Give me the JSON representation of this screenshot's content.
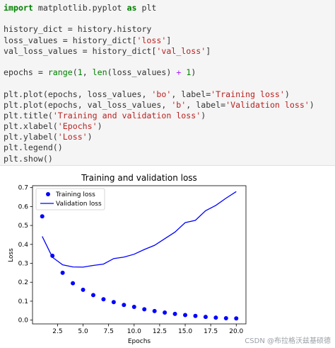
{
  "code": {
    "lines": [
      [
        {
          "t": "import",
          "c": "kw"
        },
        {
          "t": " matplotlib.pyplot ",
          "c": ""
        },
        {
          "t": "as",
          "c": "kw"
        },
        {
          "t": " plt",
          "c": ""
        }
      ],
      [],
      [
        {
          "t": "history_dict = history.history",
          "c": ""
        }
      ],
      [
        {
          "t": "loss_values = history_dict[",
          "c": ""
        },
        {
          "t": "'loss'",
          "c": "str"
        },
        {
          "t": "]",
          "c": ""
        }
      ],
      [
        {
          "t": "val_loss_values = history_dict[",
          "c": ""
        },
        {
          "t": "'val_loss'",
          "c": "str"
        },
        {
          "t": "]",
          "c": ""
        }
      ],
      [],
      [
        {
          "t": "epochs = ",
          "c": ""
        },
        {
          "t": "range",
          "c": "bi"
        },
        {
          "t": "(",
          "c": ""
        },
        {
          "t": "1",
          "c": "num"
        },
        {
          "t": ", ",
          "c": ""
        },
        {
          "t": "len",
          "c": "bi"
        },
        {
          "t": "(loss_values) ",
          "c": ""
        },
        {
          "t": "+",
          "c": "op"
        },
        {
          "t": " ",
          "c": ""
        },
        {
          "t": "1",
          "c": "num"
        },
        {
          "t": ")",
          "c": ""
        }
      ],
      [],
      [
        {
          "t": "plt.plot(epochs, loss_values, ",
          "c": ""
        },
        {
          "t": "'bo'",
          "c": "str"
        },
        {
          "t": ", label=",
          "c": ""
        },
        {
          "t": "'Training loss'",
          "c": "str"
        },
        {
          "t": ")",
          "c": ""
        }
      ],
      [
        {
          "t": "plt.plot(epochs, val_loss_values, ",
          "c": ""
        },
        {
          "t": "'b'",
          "c": "str"
        },
        {
          "t": ", label=",
          "c": ""
        },
        {
          "t": "'Validation loss'",
          "c": "str"
        },
        {
          "t": ")",
          "c": ""
        }
      ],
      [
        {
          "t": "plt.title(",
          "c": ""
        },
        {
          "t": "'Training and validation loss'",
          "c": "str"
        },
        {
          "t": ")",
          "c": ""
        }
      ],
      [
        {
          "t": "plt.xlabel(",
          "c": ""
        },
        {
          "t": "'Epochs'",
          "c": "str"
        },
        {
          "t": ")",
          "c": ""
        }
      ],
      [
        {
          "t": "plt.ylabel(",
          "c": ""
        },
        {
          "t": "'Loss'",
          "c": "str"
        },
        {
          "t": ")",
          "c": ""
        }
      ],
      [
        {
          "t": "plt.legend()",
          "c": ""
        }
      ],
      [
        {
          "t": "plt.show()",
          "c": ""
        }
      ]
    ]
  },
  "chart_data": {
    "type": "line",
    "title": "Training and validation loss",
    "xlabel": "Epochs",
    "ylabel": "Loss",
    "xlim": [
      0.05,
      20.95
    ],
    "ylim": [
      -0.02,
      0.71
    ],
    "xticks": [
      2.5,
      5.0,
      7.5,
      10.0,
      12.5,
      15.0,
      17.5,
      20.0
    ],
    "xtick_labels": [
      "2.5",
      "5.0",
      "7.5",
      "10.0",
      "12.5",
      "15.0",
      "17.5",
      "20.0"
    ],
    "yticks": [
      0.0,
      0.1,
      0.2,
      0.3,
      0.4,
      0.5,
      0.6,
      0.7
    ],
    "ytick_labels": [
      "0.0",
      "0.1",
      "0.2",
      "0.3",
      "0.4",
      "0.5",
      "0.6",
      "0.7"
    ],
    "legend_position": "top-left",
    "color": "#0000ff",
    "x": [
      1,
      2,
      3,
      4,
      5,
      6,
      7,
      8,
      9,
      10,
      11,
      12,
      13,
      14,
      15,
      16,
      17,
      18,
      19,
      20
    ],
    "series": [
      {
        "name": "Training loss",
        "style": "points",
        "values": [
          0.548,
          0.34,
          0.25,
          0.195,
          0.16,
          0.132,
          0.11,
          0.095,
          0.08,
          0.07,
          0.057,
          0.048,
          0.04,
          0.033,
          0.027,
          0.022,
          0.017,
          0.013,
          0.01,
          0.009
        ]
      },
      {
        "name": "Validation loss",
        "style": "line",
        "values": [
          0.442,
          0.332,
          0.292,
          0.281,
          0.28,
          0.289,
          0.296,
          0.325,
          0.333,
          0.348,
          0.373,
          0.395,
          0.43,
          0.465,
          0.515,
          0.527,
          0.578,
          0.606,
          0.644,
          0.679
        ]
      }
    ]
  },
  "watermark": "CSDN @布拉格沃兹基硕德"
}
